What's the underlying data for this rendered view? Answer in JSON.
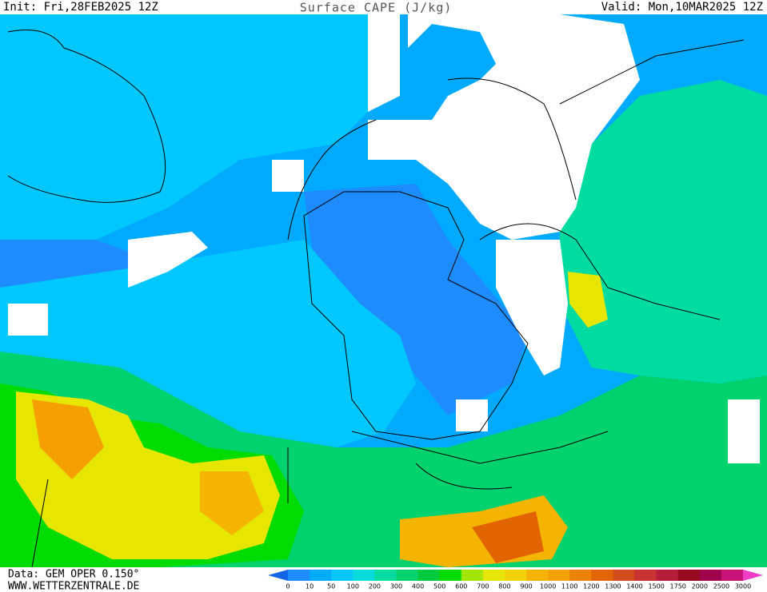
{
  "header": {
    "init": "Init: Fri,28FEB2025 12Z",
    "title": "Surface CAPE (J/kg)",
    "valid": "Valid: Mon,10MAR2025 12Z"
  },
  "footer": {
    "source": "Data: GEM OPER 0.150°",
    "website": "WWW.WETTERZENTRALE.DE"
  },
  "legend": {
    "levels": [
      0,
      10,
      50,
      100,
      200,
      300,
      400,
      500,
      600,
      700,
      800,
      900,
      1000,
      1100,
      1200,
      1300,
      1400,
      1500,
      1750,
      2000,
      2500,
      3000
    ],
    "colors": [
      "#1464e6",
      "#1e8cff",
      "#00aaff",
      "#00c8ff",
      "#00dcdc",
      "#00dca0",
      "#00d26e",
      "#00c83c",
      "#00dc00",
      "#a0e600",
      "#e6e600",
      "#f0d200",
      "#f5b400",
      "#f5a000",
      "#eb8200",
      "#e16400",
      "#d24b1e",
      "#c83232",
      "#b41e3c",
      "#960a1e",
      "#a00050",
      "#c81478",
      "#f03cc8"
    ]
  }
}
